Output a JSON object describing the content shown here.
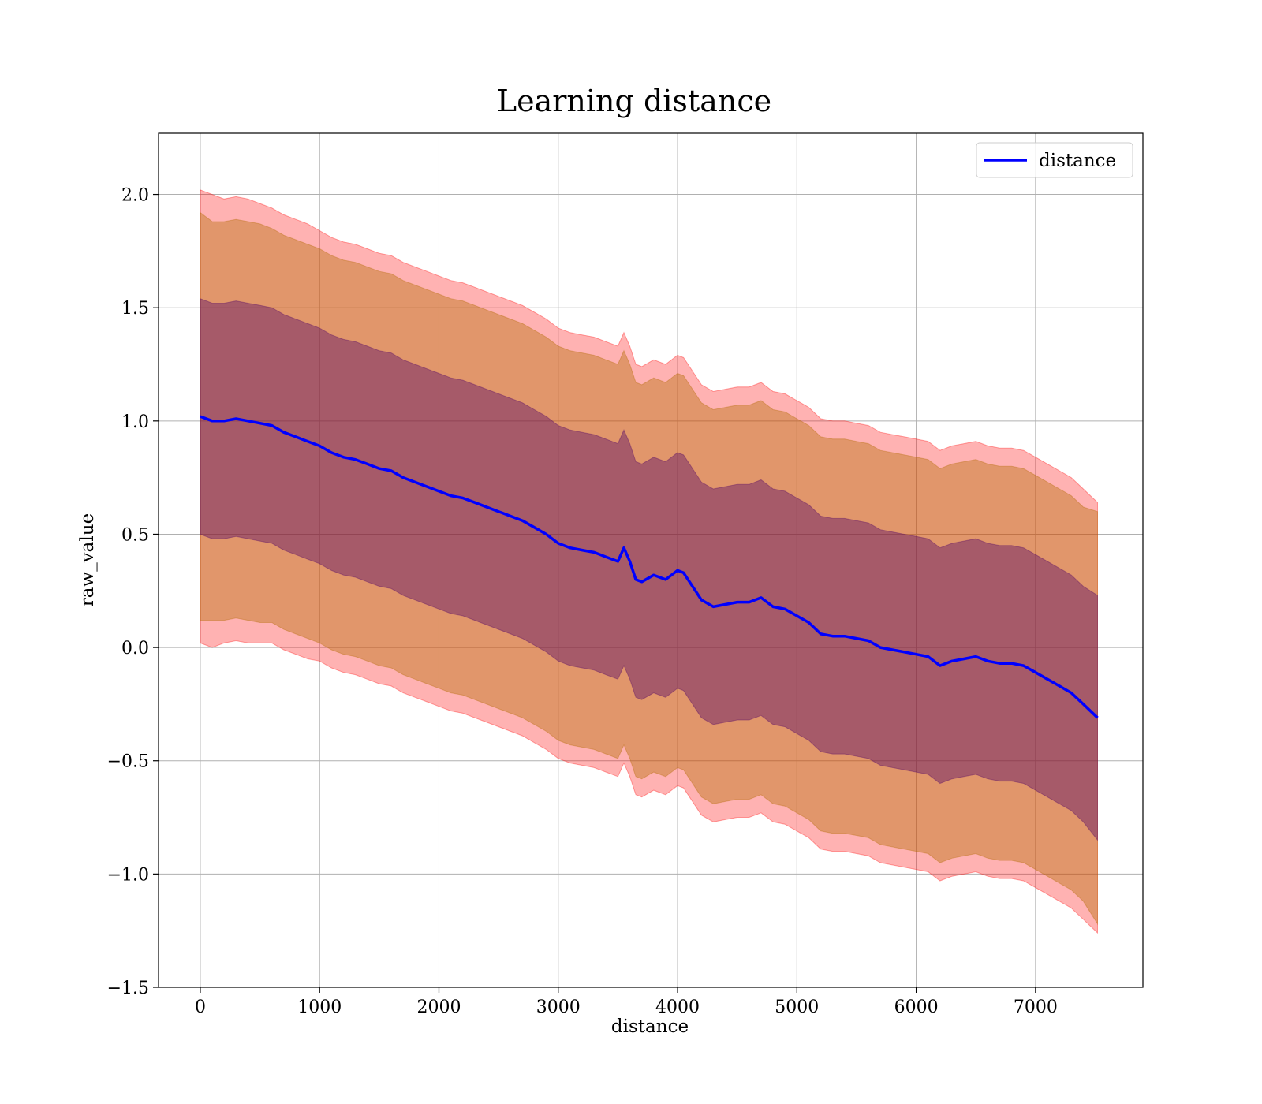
{
  "chart_data": {
    "type": "line",
    "title": "Learning distance",
    "xlabel": "distance",
    "ylabel": "raw_value",
    "xlim": [
      -350,
      7900
    ],
    "ylim": [
      -1.5,
      2.27
    ],
    "x_ticks": [
      0,
      1000,
      2000,
      3000,
      4000,
      5000,
      6000,
      7000
    ],
    "x_tick_labels": [
      "0",
      "1000",
      "2000",
      "3000",
      "4000",
      "5000",
      "6000",
      "7000"
    ],
    "y_ticks": [
      -1.5,
      -1.0,
      -0.5,
      0.0,
      0.5,
      1.0,
      1.5,
      2.0
    ],
    "y_tick_labels": [
      "−1.5",
      "−1.0",
      "−0.5",
      "0.0",
      "0.5",
      "1.0",
      "1.5",
      "2.0"
    ],
    "grid": true,
    "legend": {
      "placement": "top-right",
      "entries": [
        "distance"
      ]
    },
    "colors": {
      "line": "#0000ff",
      "band_outer": "#ff0000",
      "band_middle": "#b36b00",
      "band_inner": "#4d0066"
    },
    "series": [
      {
        "name": "distance",
        "x": [
          0,
          100,
          200,
          300,
          400,
          500,
          600,
          700,
          800,
          900,
          1000,
          1100,
          1200,
          1300,
          1400,
          1500,
          1600,
          1700,
          1800,
          1900,
          2000,
          2100,
          2200,
          2300,
          2400,
          2500,
          2600,
          2700,
          2800,
          2900,
          3000,
          3100,
          3200,
          3300,
          3400,
          3500,
          3550,
          3600,
          3650,
          3700,
          3800,
          3900,
          4000,
          4050,
          4100,
          4200,
          4300,
          4400,
          4500,
          4600,
          4700,
          4800,
          4900,
          5000,
          5100,
          5200,
          5300,
          5400,
          5500,
          5600,
          5700,
          5800,
          5900,
          6000,
          6100,
          6200,
          6300,
          6400,
          6500,
          6600,
          6700,
          6800,
          6900,
          7000,
          7100,
          7200,
          7300,
          7400,
          7520
        ],
        "values": [
          1.02,
          1.0,
          1.0,
          1.01,
          1.0,
          0.99,
          0.98,
          0.95,
          0.93,
          0.91,
          0.89,
          0.86,
          0.84,
          0.83,
          0.81,
          0.79,
          0.78,
          0.75,
          0.73,
          0.71,
          0.69,
          0.67,
          0.66,
          0.64,
          0.62,
          0.6,
          0.58,
          0.56,
          0.53,
          0.5,
          0.46,
          0.44,
          0.43,
          0.42,
          0.4,
          0.38,
          0.44,
          0.38,
          0.3,
          0.29,
          0.32,
          0.3,
          0.34,
          0.33,
          0.29,
          0.21,
          0.18,
          0.19,
          0.2,
          0.2,
          0.22,
          0.18,
          0.17,
          0.14,
          0.11,
          0.06,
          0.05,
          0.05,
          0.04,
          0.03,
          0.0,
          -0.01,
          -0.02,
          -0.03,
          -0.04,
          -0.08,
          -0.06,
          -0.05,
          -0.04,
          -0.06,
          -0.07,
          -0.07,
          -0.08,
          -0.11,
          -0.14,
          -0.17,
          -0.2,
          -0.25,
          -0.31
        ]
      }
    ],
    "bands": [
      {
        "lower_offset": [
          1.0,
          1.0,
          0.98,
          0.98,
          0.98,
          0.97,
          0.96,
          0.96,
          0.96,
          0.96,
          0.95,
          0.95,
          0.95,
          0.95,
          0.95,
          0.95,
          0.95,
          0.95,
          0.95,
          0.95,
          0.95,
          0.95,
          0.95,
          0.95,
          0.95,
          0.95,
          0.95,
          0.95,
          0.95,
          0.95,
          0.95,
          0.95,
          0.95,
          0.95,
          0.95,
          0.95,
          0.95,
          0.95,
          0.95,
          0.95,
          0.95,
          0.95,
          0.95,
          0.95,
          0.95,
          0.95,
          0.95,
          0.95,
          0.95,
          0.95,
          0.95,
          0.95,
          0.95,
          0.95,
          0.95,
          0.95,
          0.95,
          0.95,
          0.95,
          0.95,
          0.95,
          0.95,
          0.95,
          0.95,
          0.95,
          0.95,
          0.95,
          0.95,
          0.95,
          0.95,
          0.95,
          0.95,
          0.95,
          0.95,
          0.95,
          0.95,
          0.95,
          0.95,
          0.95
        ],
        "upper_offset": [
          1.0,
          1.0,
          0.98,
          0.98,
          0.98,
          0.97,
          0.96,
          0.96,
          0.96,
          0.96,
          0.95,
          0.95,
          0.95,
          0.95,
          0.95,
          0.95,
          0.95,
          0.95,
          0.95,
          0.95,
          0.95,
          0.95,
          0.95,
          0.95,
          0.95,
          0.95,
          0.95,
          0.95,
          0.95,
          0.95,
          0.95,
          0.95,
          0.95,
          0.95,
          0.95,
          0.95,
          0.95,
          0.95,
          0.95,
          0.95,
          0.95,
          0.95,
          0.95,
          0.95,
          0.95,
          0.95,
          0.95,
          0.95,
          0.95,
          0.95,
          0.95,
          0.95,
          0.95,
          0.95,
          0.95,
          0.95,
          0.95,
          0.95,
          0.95,
          0.95,
          0.95,
          0.95,
          0.95,
          0.95,
          0.95,
          0.95,
          0.95,
          0.95,
          0.95,
          0.95,
          0.95,
          0.95,
          0.95,
          0.95,
          0.95,
          0.95,
          0.95,
          0.95,
          0.95
        ]
      },
      {
        "lower_offset": [
          0.9,
          0.88,
          0.88,
          0.88,
          0.88,
          0.88,
          0.87,
          0.87,
          0.87,
          0.87,
          0.87,
          0.87,
          0.87,
          0.87,
          0.87,
          0.87,
          0.87,
          0.87,
          0.87,
          0.87,
          0.87,
          0.87,
          0.87,
          0.87,
          0.87,
          0.87,
          0.87,
          0.87,
          0.87,
          0.87,
          0.87,
          0.87,
          0.87,
          0.87,
          0.87,
          0.87,
          0.87,
          0.87,
          0.87,
          0.87,
          0.87,
          0.87,
          0.87,
          0.87,
          0.87,
          0.87,
          0.87,
          0.87,
          0.87,
          0.87,
          0.87,
          0.87,
          0.87,
          0.87,
          0.87,
          0.87,
          0.87,
          0.87,
          0.87,
          0.87,
          0.87,
          0.87,
          0.87,
          0.87,
          0.87,
          0.87,
          0.87,
          0.87,
          0.87,
          0.87,
          0.87,
          0.87,
          0.87,
          0.87,
          0.87,
          0.87,
          0.87,
          0.87,
          0.91
        ],
        "upper_offset": [
          0.9,
          0.88,
          0.88,
          0.88,
          0.88,
          0.88,
          0.87,
          0.87,
          0.87,
          0.87,
          0.87,
          0.87,
          0.87,
          0.87,
          0.87,
          0.87,
          0.87,
          0.87,
          0.87,
          0.87,
          0.87,
          0.87,
          0.87,
          0.87,
          0.87,
          0.87,
          0.87,
          0.87,
          0.87,
          0.87,
          0.87,
          0.87,
          0.87,
          0.87,
          0.87,
          0.87,
          0.87,
          0.87,
          0.87,
          0.87,
          0.87,
          0.87,
          0.87,
          0.87,
          0.87,
          0.87,
          0.87,
          0.87,
          0.87,
          0.87,
          0.87,
          0.87,
          0.87,
          0.87,
          0.87,
          0.87,
          0.87,
          0.87,
          0.87,
          0.87,
          0.87,
          0.87,
          0.87,
          0.87,
          0.87,
          0.87,
          0.87,
          0.87,
          0.87,
          0.87,
          0.87,
          0.87,
          0.87,
          0.87,
          0.87,
          0.87,
          0.87,
          0.87,
          0.91
        ]
      },
      {
        "lower_offset": [
          0.52,
          0.52,
          0.52,
          0.52,
          0.52,
          0.52,
          0.52,
          0.52,
          0.52,
          0.52,
          0.52,
          0.52,
          0.52,
          0.52,
          0.52,
          0.52,
          0.52,
          0.52,
          0.52,
          0.52,
          0.52,
          0.52,
          0.52,
          0.52,
          0.52,
          0.52,
          0.52,
          0.52,
          0.52,
          0.52,
          0.52,
          0.52,
          0.52,
          0.52,
          0.52,
          0.52,
          0.52,
          0.52,
          0.52,
          0.52,
          0.52,
          0.52,
          0.52,
          0.52,
          0.52,
          0.52,
          0.52,
          0.52,
          0.52,
          0.52,
          0.52,
          0.52,
          0.52,
          0.52,
          0.52,
          0.52,
          0.52,
          0.52,
          0.52,
          0.52,
          0.52,
          0.52,
          0.52,
          0.52,
          0.52,
          0.52,
          0.52,
          0.52,
          0.52,
          0.52,
          0.52,
          0.52,
          0.52,
          0.52,
          0.52,
          0.52,
          0.52,
          0.52,
          0.54
        ],
        "upper_offset": [
          0.52,
          0.52,
          0.52,
          0.52,
          0.52,
          0.52,
          0.52,
          0.52,
          0.52,
          0.52,
          0.52,
          0.52,
          0.52,
          0.52,
          0.52,
          0.52,
          0.52,
          0.52,
          0.52,
          0.52,
          0.52,
          0.52,
          0.52,
          0.52,
          0.52,
          0.52,
          0.52,
          0.52,
          0.52,
          0.52,
          0.52,
          0.52,
          0.52,
          0.52,
          0.52,
          0.52,
          0.52,
          0.52,
          0.52,
          0.52,
          0.52,
          0.52,
          0.52,
          0.52,
          0.52,
          0.52,
          0.52,
          0.52,
          0.52,
          0.52,
          0.52,
          0.52,
          0.52,
          0.52,
          0.52,
          0.52,
          0.52,
          0.52,
          0.52,
          0.52,
          0.52,
          0.52,
          0.52,
          0.52,
          0.52,
          0.52,
          0.52,
          0.52,
          0.52,
          0.52,
          0.52,
          0.52,
          0.52,
          0.52,
          0.52,
          0.52,
          0.52,
          0.52,
          0.54
        ]
      }
    ]
  }
}
